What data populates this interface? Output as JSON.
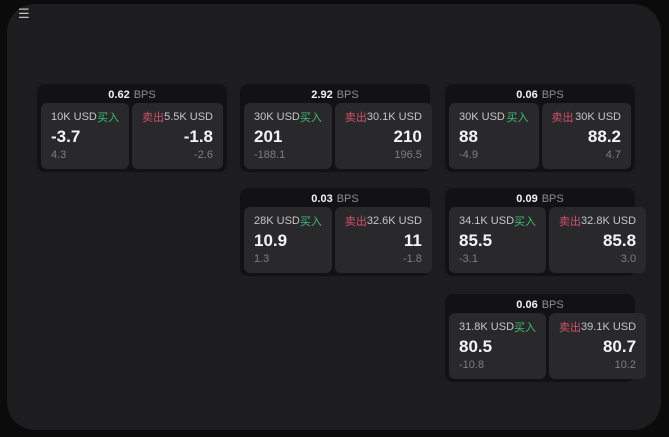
{
  "window": {
    "menu_icon": "☰"
  },
  "labels": {
    "bps_suffix": "BPS",
    "buy": "买入",
    "sell": "卖出"
  },
  "colors": {
    "outer_bg": "#0b0b0c",
    "panel_bg": "#1d1d1f",
    "card_bg": "#121214",
    "tile_bg": "#29292c",
    "buy_green": "#3cbe74",
    "sell_red": "#d4506a",
    "text_primary": "#f4f4f5",
    "text_secondary": "#c6c6c9",
    "text_muted": "#7e7e83",
    "bps_gray": "#8d8d91"
  },
  "cards": [
    {
      "col": 1,
      "row": 1,
      "bps_value": "0.62",
      "buy": {
        "notional": "10K USD",
        "price": "-3.7",
        "delta": "4.3"
      },
      "sell": {
        "notional": "5.5K USD",
        "price": "-1.8",
        "delta": "-2.6"
      }
    },
    {
      "col": 2,
      "row": 1,
      "bps_value": "2.92",
      "buy": {
        "notional": "30K USD",
        "price": "201",
        "delta": "-188.1"
      },
      "sell": {
        "notional": "30.1K USD",
        "price": "210",
        "delta": "196.5"
      }
    },
    {
      "col": 3,
      "row": 1,
      "bps_value": "0.06",
      "buy": {
        "notional": "30K USD",
        "price": "88",
        "delta": "-4.9"
      },
      "sell": {
        "notional": "30K USD",
        "price": "88.2",
        "delta": "4.7"
      }
    },
    {
      "col": 2,
      "row": 2,
      "bps_value": "0.03",
      "buy": {
        "notional": "28K USD",
        "price": "10.9",
        "delta": "1.3"
      },
      "sell": {
        "notional": "32.6K USD",
        "price": "11",
        "delta": "-1.8"
      }
    },
    {
      "col": 3,
      "row": 2,
      "bps_value": "0.09",
      "buy": {
        "notional": "34.1K USD",
        "price": "85.5",
        "delta": "-3.1"
      },
      "sell": {
        "notional": "32.8K USD",
        "price": "85.8",
        "delta": "3.0"
      }
    },
    {
      "col": 3,
      "row": 3,
      "bps_value": "0.06",
      "buy": {
        "notional": "31.8K USD",
        "price": "80.5",
        "delta": "-10.8"
      },
      "sell": {
        "notional": "39.1K USD",
        "price": "80.7",
        "delta": "10.2"
      }
    }
  ]
}
